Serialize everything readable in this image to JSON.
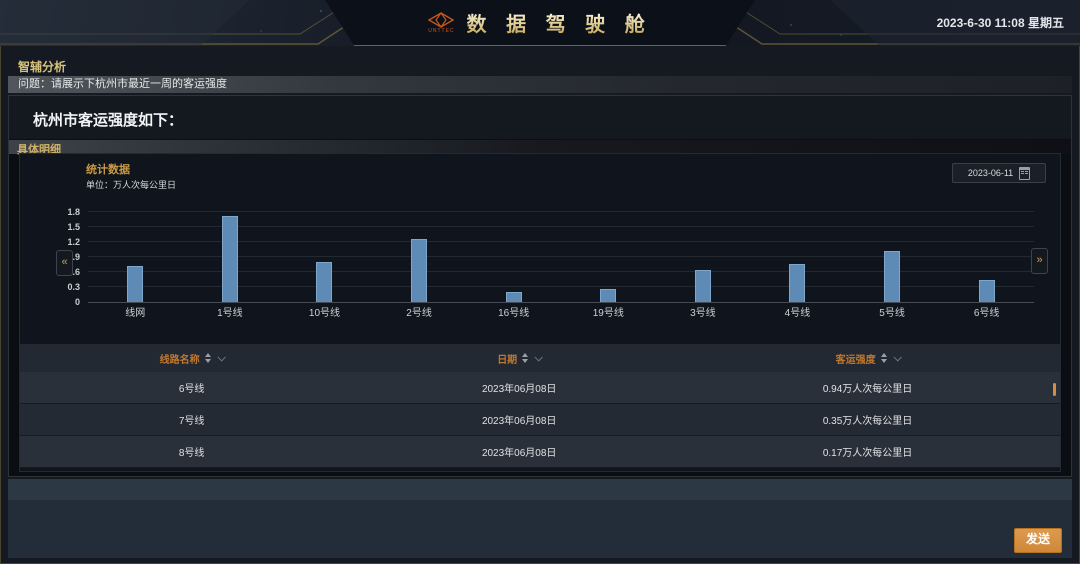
{
  "header": {
    "title": "数 据 驾 驶 舱",
    "brand": "UNTTEC",
    "datetime": "2023-6-30 11:08 星期五"
  },
  "analysis": {
    "section_title": "智辅分析",
    "question": "问题：请展示下杭州市最近一周的客运强度",
    "answer_title": "杭州市客运强度如下：",
    "detail_tab": "具体明细"
  },
  "stats": {
    "panel_title": "统计数据",
    "unit_label": "单位：万人次每公里日",
    "date_value": "2023-06-11"
  },
  "chart_data": {
    "type": "bar",
    "title": "统计数据",
    "ylabel": "万人次每公里日",
    "categories": [
      "线网",
      "1号线",
      "10号线",
      "2号线",
      "16号线",
      "19号线",
      "3号线",
      "4号线",
      "5号线",
      "6号线"
    ],
    "values": [
      0.73,
      1.72,
      0.8,
      1.26,
      0.2,
      0.27,
      0.65,
      0.77,
      1.03,
      0.44
    ],
    "ylim": [
      0,
      1.8
    ],
    "yticks": [
      0,
      0.3,
      0.6,
      0.9,
      1.2,
      1.5,
      1.8
    ],
    "grid": true,
    "legend": "none",
    "bar_color": "#5d8bb6"
  },
  "table": {
    "columns": [
      "线路名称",
      "日期",
      "客运强度"
    ],
    "rows": [
      [
        "6号线",
        "2023年06月08日",
        "0.94万人次每公里日"
      ],
      [
        "7号线",
        "2023年06月08日",
        "0.35万人次每公里日"
      ],
      [
        "8号线",
        "2023年06月08日",
        "0.17万人次每公里日"
      ]
    ]
  },
  "chart_nav": {
    "prev": "«",
    "next": "»"
  },
  "composer": {
    "send_label": "发送"
  },
  "colors": {
    "accent_gold": "#d6c27a",
    "accent_orange": "#c0782f",
    "button_orange": "#d38e3f",
    "bar_blue": "#5d8bb6"
  }
}
